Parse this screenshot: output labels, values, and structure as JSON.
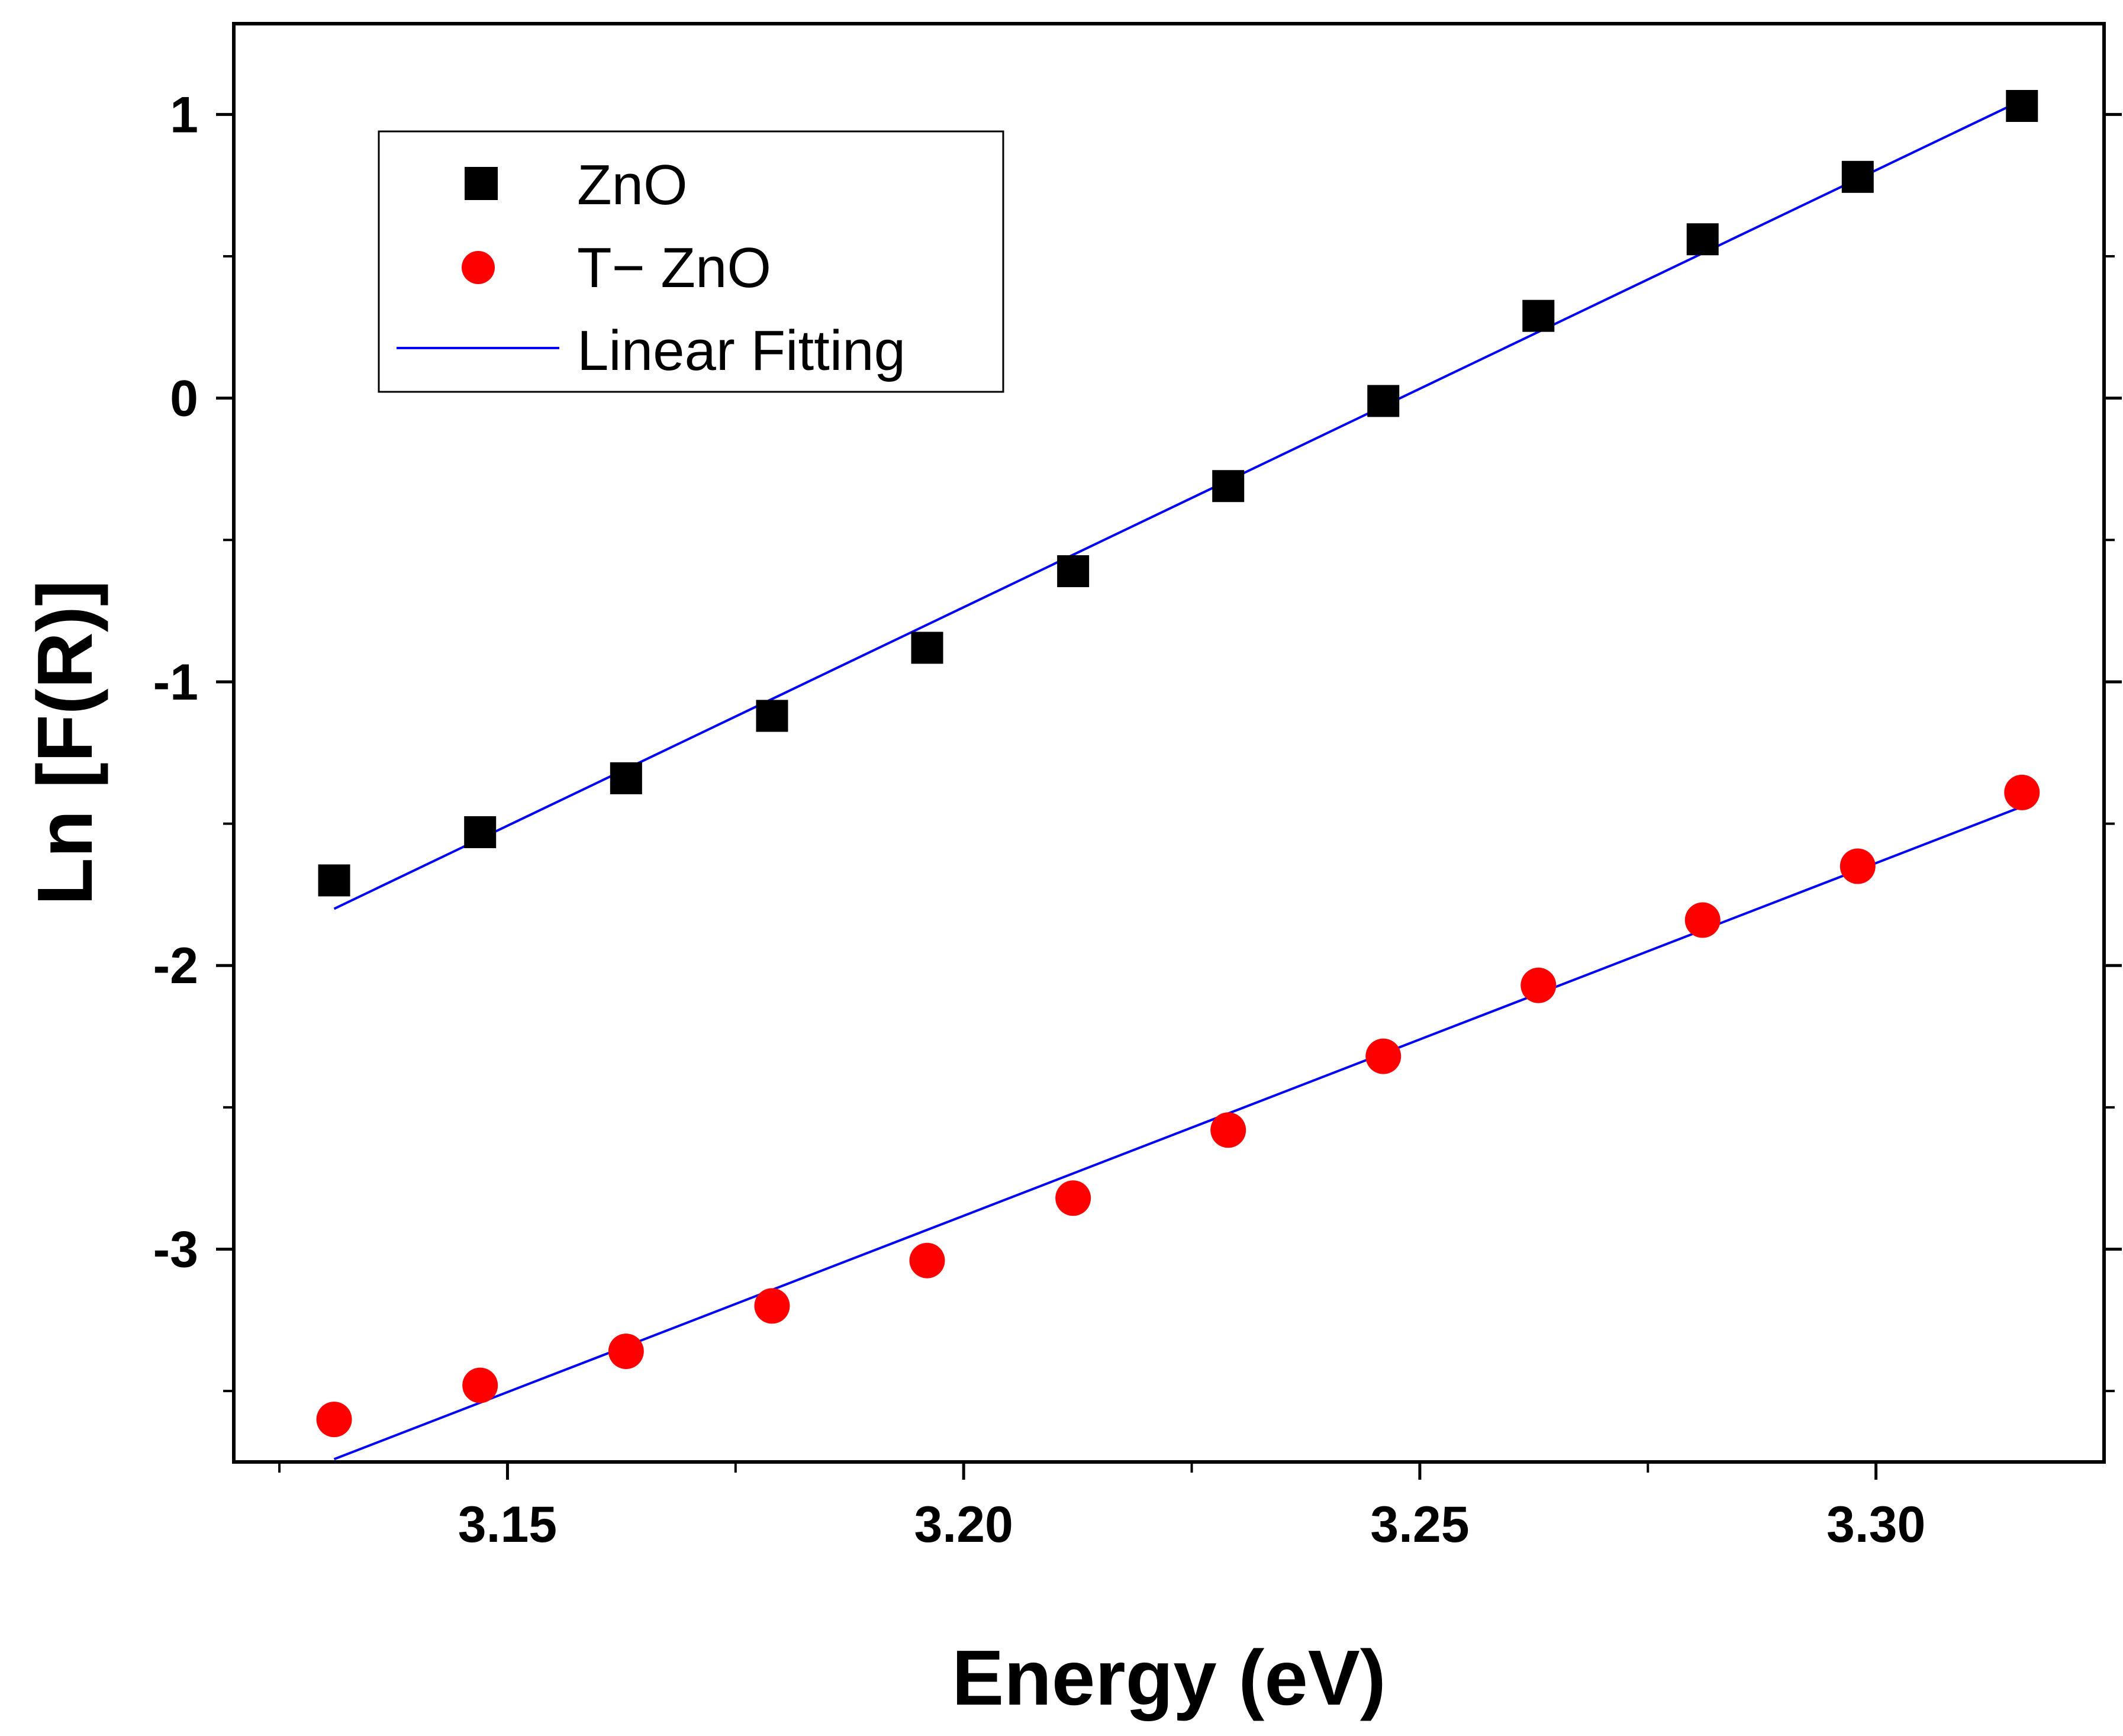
{
  "chart_data": {
    "type": "scatter",
    "title": "",
    "xlabel": "Energy (eV)",
    "ylabel": "Ln [F(R)]",
    "xlim": [
      3.12,
      3.325
    ],
    "ylim": [
      -3.75,
      1.32
    ],
    "xticks": [
      {
        "value": 3.15,
        "label": "3.15"
      },
      {
        "value": 3.2,
        "label": "3.20"
      },
      {
        "value": 3.25,
        "label": "3.25"
      },
      {
        "value": 3.3,
        "label": "3.30"
      }
    ],
    "yticks": [
      {
        "value": 1,
        "label": "1"
      },
      {
        "value": 0,
        "label": "0"
      },
      {
        "value": -1,
        "label": "-1"
      },
      {
        "value": -2,
        "label": "-2"
      },
      {
        "value": -3,
        "label": "-3"
      }
    ],
    "grid": false,
    "legend_position": "top-left",
    "series": [
      {
        "name": "ZnO",
        "marker": "square",
        "color": "#000000",
        "x": [
          3.131,
          3.147,
          3.163,
          3.179,
          3.196,
          3.212,
          3.229,
          3.246,
          3.263,
          3.281,
          3.298,
          3.316
        ],
        "y": [
          -1.7,
          -1.53,
          -1.34,
          -1.12,
          -0.88,
          -0.61,
          -0.31,
          -0.01,
          0.29,
          0.56,
          0.78,
          1.03
        ]
      },
      {
        "name": "T− ZnO",
        "marker": "circle",
        "color": "#ff0000",
        "x": [
          3.131,
          3.147,
          3.163,
          3.179,
          3.196,
          3.212,
          3.229,
          3.246,
          3.263,
          3.281,
          3.298,
          3.316
        ],
        "y": [
          -3.6,
          -3.48,
          -3.36,
          -3.2,
          -3.04,
          -2.82,
          -2.58,
          -2.32,
          -2.07,
          -1.84,
          -1.65,
          -1.39
        ]
      }
    ],
    "fits": [
      {
        "name": "Linear Fitting",
        "color": "#0000ff",
        "x": [
          3.131,
          3.316
        ],
        "y": [
          -1.8,
          1.05
        ]
      },
      {
        "name": "Linear Fitting",
        "color": "#0000ff",
        "x": [
          3.131,
          3.316
        ],
        "y": [
          -3.74,
          -1.44
        ]
      }
    ],
    "legend": [
      {
        "label": "ZnO",
        "marker": "square",
        "color": "#000000"
      },
      {
        "label": "T− ZnO",
        "marker": "circle",
        "color": "#ff0000"
      },
      {
        "label": "Linear Fitting",
        "marker": "line",
        "color": "#0000ff"
      }
    ]
  }
}
